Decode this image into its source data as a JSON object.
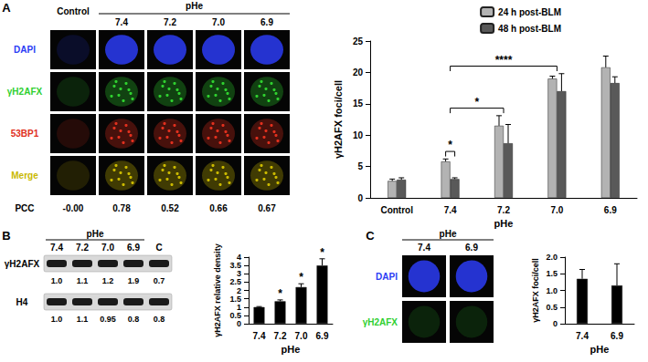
{
  "panels": {
    "A": {
      "label": "A",
      "header": "Control",
      "group_label": "pHe",
      "columns": [
        "7.4",
        "7.2",
        "7.0",
        "6.9"
      ],
      "rows": [
        {
          "name": "DAPI",
          "color": "#2b3cf5"
        },
        {
          "name": "γH2AFX",
          "color": "#2fcf2f"
        },
        {
          "name": "53BP1",
          "color": "#e0301e"
        },
        {
          "name": "Merge",
          "color": "#c9b800"
        }
      ],
      "pcc_label": "PCC",
      "pcc": [
        {
          "value": -0.0,
          "label": "-0.00"
        },
        0.78,
        0.52,
        0.66,
        0.67
      ]
    },
    "B": {
      "label": "B",
      "group_label": "pHe",
      "lanes": [
        "7.4",
        "7.2",
        "7.0",
        "6.9",
        "C"
      ],
      "blots": [
        {
          "name": "γH2AFX",
          "values": [
            1.0,
            1.1,
            1.2,
            1.9,
            0.7
          ]
        },
        {
          "name": "H4",
          "values": [
            1.0,
            1.1,
            0.95,
            0.8,
            0.8
          ]
        }
      ]
    },
    "C": {
      "label": "C",
      "group_label": "pHe",
      "columns": [
        "7.4",
        "6.9"
      ],
      "rows": [
        {
          "name": "DAPI",
          "color": "#2b3cf5"
        },
        {
          "name": "γH2AFX",
          "color": "#2fcf2f"
        }
      ]
    }
  },
  "chart_data": [
    {
      "type": "bar",
      "ylabel": "γH2AFX foci/cell",
      "xlabel": "pHe",
      "categories": [
        "Control",
        "7.4",
        "7.2",
        "7.0",
        "6.9"
      ],
      "series": [
        {
          "name": "24 h post-BLM",
          "color": "#b3b3b3",
          "values": [
            2.7,
            5.8,
            11.5,
            19.0,
            20.8
          ],
          "errors": [
            0.3,
            0.4,
            1.6,
            0.4,
            1.8
          ]
        },
        {
          "name": "48 h post-BLM",
          "color": "#595959",
          "values": [
            2.9,
            3.0,
            8.7,
            17.0,
            18.3
          ],
          "errors": [
            0.3,
            0.2,
            3.0,
            2.8,
            1.0
          ]
        }
      ],
      "ylim": [
        0,
        25
      ],
      "yticks": [
        0,
        5,
        10,
        15,
        20,
        25
      ],
      "legend": "top-right",
      "grid": false,
      "annotations": [
        {
          "text": "*",
          "from": {
            "category": "7.4",
            "series": "24 h post-BLM"
          },
          "to": {
            "category": "7.4",
            "series": "48 h post-BLM"
          }
        },
        {
          "text": "*",
          "from": {
            "category": "7.4"
          },
          "to": {
            "category": "7.2"
          }
        },
        {
          "text": "****",
          "from": {
            "category": "7.4"
          },
          "to": {
            "category": "7.0"
          }
        }
      ]
    },
    {
      "type": "bar",
      "ylabel": "γH2AFX relative density",
      "xlabel": "pHe",
      "categories": [
        "7.4",
        "7.2",
        "7.0",
        "6.9"
      ],
      "values": [
        1.0,
        1.35,
        2.2,
        3.5
      ],
      "errors": [
        0.03,
        0.08,
        0.2,
        0.4
      ],
      "significance": [
        null,
        "*",
        "*",
        "*"
      ],
      "color": "#000000",
      "ylim": [
        0,
        4
      ],
      "yticks": [
        0,
        0.5,
        1,
        1.5,
        2,
        2.5,
        3,
        3.5,
        4
      ],
      "grid": false
    },
    {
      "type": "bar",
      "ylabel": "γH2AFX foci/cell",
      "xlabel": "pHe",
      "categories": [
        "7.4",
        "6.9"
      ],
      "values": [
        1.35,
        1.15
      ],
      "errors": [
        0.28,
        0.65
      ],
      "color": "#000000",
      "ylim": [
        0,
        2
      ],
      "yticks": [
        0,
        0.5,
        {
          "value": 1,
          "label": "1.0"
        },
        1.5,
        {
          "value": 2,
          "label": "2.0"
        }
      ],
      "grid": false
    }
  ]
}
